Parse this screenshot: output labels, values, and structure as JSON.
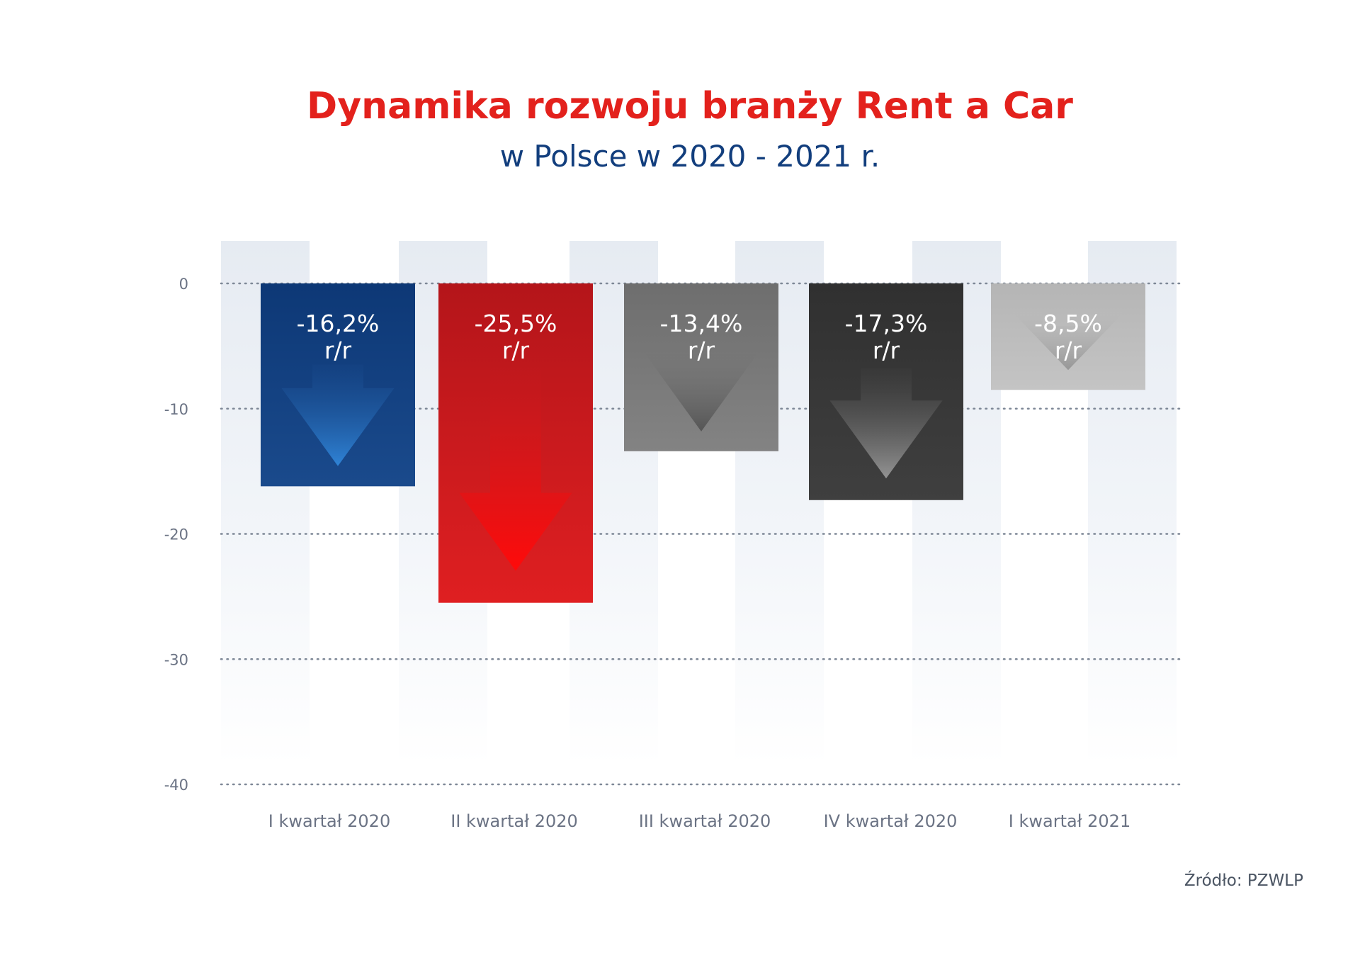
{
  "title": "Dynamika rozwoju branży Rent a Car",
  "subtitle": "w Polsce w 2020 - 2021 r.",
  "source": "Źródło: PZWLP",
  "chart_data": {
    "type": "bar",
    "categories": [
      "I kwartał 2020",
      "II kwartał 2020",
      "III kwartał 2020",
      "IV kwartał 2020",
      "I kwartał 2021"
    ],
    "values": [
      -16.2,
      -25.5,
      -13.4,
      -17.3,
      -8.5
    ],
    "value_labels": [
      "-16,2%",
      "-25,5%",
      "-13,4%",
      "-17,3%",
      "-8,5%"
    ],
    "value_suffix": "r/r",
    "bar_colors": [
      "#123f7c",
      "#d71c20",
      "#7a7a7a",
      "#3a3a3a",
      "#bdbdbd"
    ],
    "arrow_colors": [
      "#2a78c9",
      "#ff1a1a",
      "#5a5a5a",
      "#8a8a8a",
      "#9a9a9a"
    ],
    "yticks": [
      0,
      -10,
      -20,
      -30,
      -40
    ],
    "ylim": [
      -40,
      0
    ],
    "grid": true,
    "title": "Dynamika rozwoju branży Rent a Car",
    "subtitle": "w Polsce w 2020 - 2021 r.",
    "xlabel": "",
    "ylabel": ""
  }
}
